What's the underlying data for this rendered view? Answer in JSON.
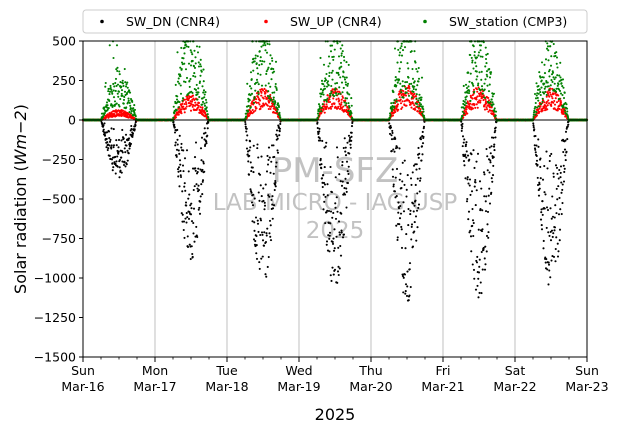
{
  "chart_data": {
    "type": "scatter",
    "xlabel": "2025",
    "ylabel": "Solar radiation (Wm−2)",
    "ylabel_main": "Solar radiation (",
    "ylabel_unit": "Wm−2",
    "ylabel_close": ")",
    "ylim": [
      -1500,
      500
    ],
    "yticks": [
      -1500,
      -1250,
      -1000,
      -750,
      -500,
      -250,
      0,
      250,
      500
    ],
    "ytick_labels": [
      "−1500",
      "−1250",
      "−1000",
      "−750",
      "−500",
      "−250",
      "0",
      "250",
      "500"
    ],
    "xlim": [
      "2025-03-16",
      "2025-03-23"
    ],
    "xticks": [
      {
        "day": "Sun",
        "date": "Mar-16"
      },
      {
        "day": "Mon",
        "date": "Mar-17"
      },
      {
        "day": "Tue",
        "date": "Mar-18"
      },
      {
        "day": "Wed",
        "date": "Mar-19"
      },
      {
        "day": "Thu",
        "date": "Mar-20"
      },
      {
        "day": "Fri",
        "date": "Mar-21"
      },
      {
        "day": "Sat",
        "date": "Mar-22"
      },
      {
        "day": "Sun",
        "date": "Mar-23"
      }
    ],
    "grid": "vertical",
    "legend_position": "top",
    "series": [
      {
        "name": "SW_DN (CNR4)",
        "color": "#000000",
        "daily_peak": [
          -370,
          -900,
          -1080,
          -1100,
          -1160,
          -1130,
          -1080
        ],
        "description_hint": "downward shortwave, negative, daytime only"
      },
      {
        "name": "SW_UP (CNR4)",
        "color": "#ff0000",
        "daily_peak": [
          65,
          160,
          200,
          205,
          225,
          210,
          200
        ]
      },
      {
        "name": "SW_station (CMP3)",
        "color": "#008000",
        "daily_peak": [
          280,
          500,
          500,
          500,
          480,
          500,
          460
        ]
      }
    ],
    "watermark": {
      "line1": "PM-SFZ",
      "line2": "LAB MICRO - IAG USP",
      "line3": "2025"
    }
  }
}
